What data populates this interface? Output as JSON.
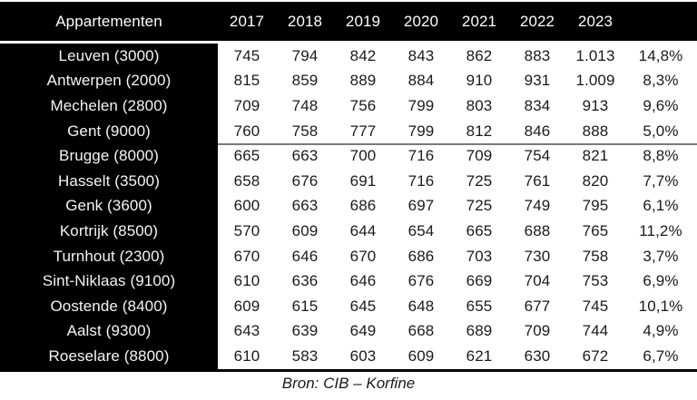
{
  "colors": {
    "header_bg": "#000000",
    "row_label_bg": "#000000",
    "data_bg": "#ffffff",
    "header_text": "#ffffff",
    "data_text": "#1a1a1a",
    "group_divider": "#7a7a7a",
    "bottom_rule": "#000000"
  },
  "table": {
    "title_column_header": "Appartementen",
    "year_headers": [
      "2017",
      "2018",
      "2019",
      "2020",
      "2021",
      "2022",
      "2023"
    ],
    "pct_header": "",
    "rows": [
      {
        "city": "Leuven (3000)",
        "values": [
          "745",
          "794",
          "842",
          "843",
          "862",
          "883",
          "1.013"
        ],
        "pct": "14,8%"
      },
      {
        "city": "Antwerpen (2000)",
        "values": [
          "815",
          "859",
          "889",
          "884",
          "910",
          "931",
          "1.009"
        ],
        "pct": "8,3%"
      },
      {
        "city": "Mechelen (2800)",
        "values": [
          "709",
          "748",
          "756",
          "799",
          "803",
          "834",
          "913"
        ],
        "pct": "9,6%"
      },
      {
        "city": "Gent (9000)",
        "values": [
          "760",
          "758",
          "777",
          "799",
          "812",
          "846",
          "888"
        ],
        "pct": "5,0%"
      },
      {
        "city": "Brugge (8000)",
        "values": [
          "665",
          "663",
          "700",
          "716",
          "709",
          "754",
          "821"
        ],
        "pct": "8,8%"
      },
      {
        "city": "Hasselt (3500)",
        "values": [
          "658",
          "676",
          "691",
          "716",
          "725",
          "761",
          "820"
        ],
        "pct": "7,7%"
      },
      {
        "city": "Genk (3600)",
        "values": [
          "600",
          "663",
          "686",
          "697",
          "725",
          "749",
          "795"
        ],
        "pct": "6,1%"
      },
      {
        "city": "Kortrijk (8500)",
        "values": [
          "570",
          "609",
          "644",
          "654",
          "665",
          "688",
          "765"
        ],
        "pct": "11,2%"
      },
      {
        "city": "Turnhout (2300)",
        "values": [
          "670",
          "646",
          "670",
          "686",
          "703",
          "730",
          "758"
        ],
        "pct": "3,7%"
      },
      {
        "city": "Sint-Niklaas (9100)",
        "values": [
          "610",
          "636",
          "646",
          "676",
          "669",
          "704",
          "753"
        ],
        "pct": "6,9%"
      },
      {
        "city": "Oostende (8400)",
        "values": [
          "609",
          "615",
          "645",
          "648",
          "655",
          "677",
          "745"
        ],
        "pct": "10,1%"
      },
      {
        "city": "Aalst (9300)",
        "values": [
          "643",
          "639",
          "649",
          "668",
          "689",
          "709",
          "744"
        ],
        "pct": "4,9%"
      },
      {
        "city": "Roeselare (8800)",
        "values": [
          "610",
          "583",
          "603",
          "609",
          "621",
          "630",
          "672"
        ],
        "pct": "6,7%"
      }
    ]
  },
  "footer": {
    "source": "Bron: CIB – Korfine"
  },
  "chart_data": {
    "type": "table",
    "title": "Appartementen",
    "columns": [
      "Appartementen",
      "2017",
      "2018",
      "2019",
      "2020",
      "2021",
      "2022",
      "2023",
      ""
    ],
    "rows": [
      [
        "Leuven (3000)",
        745,
        794,
        842,
        843,
        862,
        883,
        1013,
        "14,8%"
      ],
      [
        "Antwerpen (2000)",
        815,
        859,
        889,
        884,
        910,
        931,
        1009,
        "8,3%"
      ],
      [
        "Mechelen (2800)",
        709,
        748,
        756,
        799,
        803,
        834,
        913,
        "9,6%"
      ],
      [
        "Gent (9000)",
        760,
        758,
        777,
        799,
        812,
        846,
        888,
        "5,0%"
      ],
      [
        "Brugge (8000)",
        665,
        663,
        700,
        716,
        709,
        754,
        821,
        "8,8%"
      ],
      [
        "Hasselt (3500)",
        658,
        676,
        691,
        716,
        725,
        761,
        820,
        "7,7%"
      ],
      [
        "Genk (3600)",
        600,
        663,
        686,
        697,
        725,
        749,
        795,
        "6,1%"
      ],
      [
        "Kortrijk (8500)",
        570,
        609,
        644,
        654,
        665,
        688,
        765,
        "11,2%"
      ],
      [
        "Turnhout (2300)",
        670,
        646,
        670,
        686,
        703,
        730,
        758,
        "3,7%"
      ],
      [
        "Sint-Niklaas (9100)",
        610,
        636,
        646,
        676,
        669,
        704,
        753,
        "6,9%"
      ],
      [
        "Oostende (8400)",
        609,
        615,
        645,
        648,
        655,
        677,
        745,
        "10,1%"
      ],
      [
        "Aalst (9300)",
        643,
        639,
        649,
        668,
        689,
        709,
        744,
        "4,9%"
      ],
      [
        "Roeselare (8800)",
        610,
        583,
        603,
        609,
        621,
        630,
        672,
        "6,7%"
      ]
    ],
    "source": "Bron: CIB – Korfine",
    "layout": "first 4 rows visually grouped above a gray divider line"
  }
}
